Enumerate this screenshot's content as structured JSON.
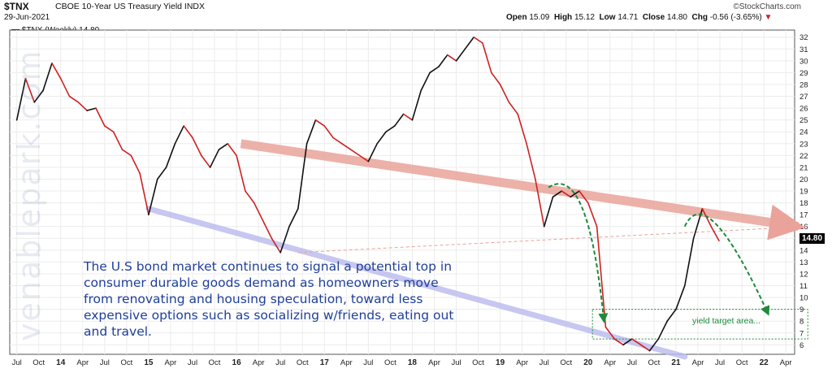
{
  "header": {
    "ticker": "$TNX",
    "description": "CBOE 10-Year US Treasury Yield INDX",
    "date": "29-Jun-2021",
    "brand": "©StockCharts.com",
    "stats": {
      "open_label": "Open",
      "open": "15.09",
      "high_label": "High",
      "high": "15.12",
      "low_label": "Low",
      "low": "14.71",
      "close_label": "Close",
      "close": "14.80",
      "chg_label": "Chg",
      "chg": "-0.56 (-3.65%)"
    },
    "legend": "$TNX (Weekly) 14.80"
  },
  "watermark": "venablepark.com",
  "annotation": "The U.S bond market continues to signal a potential top in consumer durable goods demand as homeowners move from renovating and housing speculation, toward less expensive options such as socializing w/friends, eating out and travel.",
  "target_label": "yield target area...",
  "price_badge": "14.80",
  "colors": {
    "up": "#111111",
    "down": "#d02020",
    "resistance": "#e9a39a",
    "support": "#b9b9ee",
    "arrow": "#1e8a3a",
    "frame": "#555555"
  },
  "chart_data": {
    "type": "line",
    "title": "$TNX CBOE 10-Year US Treasury Yield INDX",
    "series": [
      {
        "name": "$TNX (Weekly)",
        "x": [
          2013.5,
          2013.6,
          2013.7,
          2013.8,
          2013.9,
          2014.0,
          2014.1,
          2014.2,
          2014.3,
          2014.4,
          2014.5,
          2014.6,
          2014.7,
          2014.8,
          2014.9,
          2015.0,
          2015.1,
          2015.2,
          2015.3,
          2015.4,
          2015.5,
          2015.6,
          2015.7,
          2015.8,
          2015.9,
          2016.0,
          2016.1,
          2016.2,
          2016.3,
          2016.4,
          2016.5,
          2016.6,
          2016.7,
          2016.8,
          2016.9,
          2017.0,
          2017.1,
          2017.2,
          2017.3,
          2017.4,
          2017.5,
          2017.6,
          2017.7,
          2017.8,
          2017.9,
          2018.0,
          2018.1,
          2018.2,
          2018.3,
          2018.4,
          2018.5,
          2018.6,
          2018.7,
          2018.8,
          2018.9,
          2019.0,
          2019.1,
          2019.2,
          2019.3,
          2019.4,
          2019.5,
          2019.6,
          2019.7,
          2019.8,
          2019.9,
          2020.0,
          2020.1,
          2020.2,
          2020.3,
          2020.4,
          2020.5,
          2020.6,
          2020.7,
          2020.8,
          2020.9,
          2021.0,
          2021.1,
          2021.2,
          2021.3,
          2021.4,
          2021.49
        ],
        "y": [
          25.0,
          28.5,
          26.5,
          27.5,
          29.8,
          28.5,
          27.0,
          26.5,
          25.8,
          26.0,
          24.5,
          24.0,
          22.5,
          22.0,
          20.5,
          17.0,
          20.0,
          21.0,
          23.0,
          24.5,
          23.5,
          22.0,
          21.0,
          22.5,
          23.0,
          22.0,
          19.0,
          18.0,
          16.5,
          15.0,
          13.8,
          16.0,
          17.5,
          23.0,
          25.0,
          24.5,
          23.5,
          23.0,
          22.5,
          22.0,
          21.5,
          23.0,
          24.0,
          24.5,
          25.5,
          25.0,
          27.5,
          29.0,
          29.5,
          30.5,
          30.0,
          31.0,
          32.0,
          31.5,
          29.0,
          28.0,
          26.5,
          25.5,
          23.0,
          20.0,
          16.0,
          18.5,
          19.0,
          18.5,
          19.0,
          18.0,
          16.0,
          7.5,
          6.5,
          6.0,
          6.5,
          6.0,
          5.5,
          6.5,
          8.0,
          9.0,
          11.0,
          15.0,
          17.5,
          16.0,
          14.8
        ]
      }
    ],
    "trendlines": [
      {
        "name": "resistance",
        "x": [
          2016.05,
          2022.5
        ],
        "y": [
          23.0,
          16.0
        ]
      },
      {
        "name": "support",
        "x": [
          2015.0,
          2021.1
        ],
        "y": [
          17.5,
          5.0
        ]
      },
      {
        "name": "horizontal",
        "x": [
          2016.7,
          2022.5
        ],
        "y": [
          13.8,
          16.0
        ]
      }
    ],
    "target_box": {
      "x": [
        2020.05,
        2022.5
      ],
      "y": [
        6.5,
        9.0
      ]
    },
    "x_ticks": [
      {
        "x": 2013.5,
        "label": "Jul"
      },
      {
        "x": 2013.75,
        "label": "Oct"
      },
      {
        "x": 2014.0,
        "label": "14"
      },
      {
        "x": 2014.25,
        "label": "Apr"
      },
      {
        "x": 2014.5,
        "label": "Jul"
      },
      {
        "x": 2014.75,
        "label": "Oct"
      },
      {
        "x": 2015.0,
        "label": "15"
      },
      {
        "x": 2015.25,
        "label": "Apr"
      },
      {
        "x": 2015.5,
        "label": "Jul"
      },
      {
        "x": 2015.75,
        "label": "Oct"
      },
      {
        "x": 2016.0,
        "label": "16"
      },
      {
        "x": 2016.25,
        "label": "Apr"
      },
      {
        "x": 2016.5,
        "label": "Jul"
      },
      {
        "x": 2016.75,
        "label": "Oct"
      },
      {
        "x": 2017.0,
        "label": "17"
      },
      {
        "x": 2017.25,
        "label": "Apr"
      },
      {
        "x": 2017.5,
        "label": "Jul"
      },
      {
        "x": 2017.75,
        "label": "Oct"
      },
      {
        "x": 2018.0,
        "label": "18"
      },
      {
        "x": 2018.25,
        "label": "Apr"
      },
      {
        "x": 2018.5,
        "label": "Jul"
      },
      {
        "x": 2018.75,
        "label": "Oct"
      },
      {
        "x": 2019.0,
        "label": "19"
      },
      {
        "x": 2019.25,
        "label": "Apr"
      },
      {
        "x": 2019.5,
        "label": "Jul"
      },
      {
        "x": 2019.75,
        "label": "Oct"
      },
      {
        "x": 2020.0,
        "label": "20"
      },
      {
        "x": 2020.25,
        "label": "Apr"
      },
      {
        "x": 2020.5,
        "label": "Jul"
      },
      {
        "x": 2020.75,
        "label": "Oct"
      },
      {
        "x": 2021.0,
        "label": "21"
      },
      {
        "x": 2021.25,
        "label": "Apr"
      },
      {
        "x": 2021.5,
        "label": "Jul"
      },
      {
        "x": 2021.75,
        "label": "Oct"
      },
      {
        "x": 2022.0,
        "label": "22"
      },
      {
        "x": 2022.25,
        "label": "Apr"
      }
    ],
    "y_ticks": [
      6,
      7,
      8,
      9,
      10,
      11,
      12,
      13,
      14,
      15,
      16,
      17,
      18,
      19,
      20,
      21,
      22,
      23,
      24,
      25,
      26,
      27,
      28,
      29,
      30,
      31,
      32
    ],
    "xlim": [
      2013.42,
      2022.35
    ],
    "ylim": [
      5.2,
      32.6
    ],
    "grid": true
  }
}
